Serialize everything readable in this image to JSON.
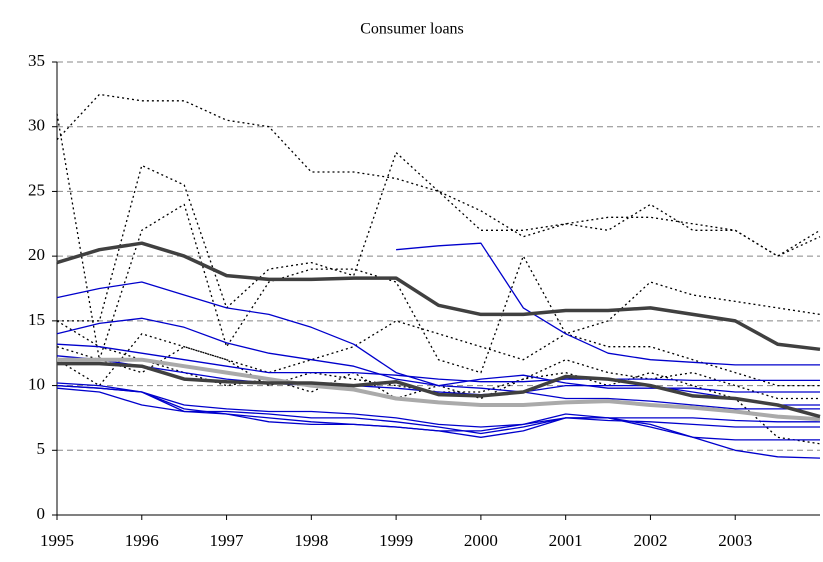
{
  "chart_data": {
    "type": "line",
    "title": "Consumer loans",
    "x": [
      1995,
      1995.5,
      1996,
      1996.5,
      1997,
      1997.5,
      1998,
      1998.5,
      1999,
      1999.5,
      2000,
      2000.5,
      2001,
      2001.5,
      2002,
      2002.5,
      2003,
      2003.5,
      2004
    ],
    "xlim": [
      1995,
      2004
    ],
    "xticks": [
      1995,
      1996,
      1997,
      1998,
      1999,
      2000,
      2001,
      2002,
      2003
    ],
    "ylim": [
      0,
      35
    ],
    "yticks": [
      0,
      5,
      10,
      15,
      20,
      25,
      30,
      35
    ],
    "grid": true,
    "series": [
      {
        "color": "#000000",
        "style": "dotted",
        "line_width": 1.3,
        "values": [
          29,
          32.5,
          32,
          32,
          30.5,
          30,
          26.5,
          26.5,
          26,
          25,
          23.5,
          21.5,
          22.5,
          23,
          23,
          22.5,
          22,
          20,
          22
        ]
      },
      {
        "color": "#000000",
        "style": "dotted",
        "line_width": 1.3,
        "values": [
          15,
          15,
          27,
          25.5,
          16,
          19,
          19.5,
          18.5,
          28,
          25,
          22,
          22,
          22.5,
          22,
          24,
          22,
          22,
          20,
          21.5
        ]
      },
      {
        "color": "#000000",
        "style": "dotted",
        "line_width": 1.3,
        "values": [
          31,
          12,
          22,
          24,
          13,
          18,
          19,
          19,
          18,
          12,
          11,
          20,
          14,
          15,
          18,
          17,
          16.5,
          16,
          15.5
        ]
      },
      {
        "color": "#000000",
        "style": "dotted",
        "line_width": 1.3,
        "values": [
          12,
          10,
          14,
          13,
          12,
          11,
          12,
          13,
          15,
          14,
          13,
          12,
          14,
          13,
          13,
          12,
          11,
          10,
          10
        ]
      },
      {
        "color": "#000000",
        "style": "dotted",
        "line_width": 1.3,
        "values": [
          15,
          13,
          12,
          11,
          10,
          10.5,
          9.5,
          11,
          9,
          10,
          9,
          10.5,
          12,
          11,
          10.5,
          11,
          10,
          9,
          9
        ]
      },
      {
        "color": "#000000",
        "style": "dotted",
        "line_width": 1.3,
        "values": [
          13,
          12,
          11,
          13,
          12,
          10,
          11,
          10.5,
          10,
          9.5,
          9.5,
          10.5,
          11,
          10,
          11,
          10,
          9,
          6,
          5.5
        ]
      },
      {
        "color": "#0000cc",
        "style": "solid",
        "line_width": 1.3,
        "values": [
          16.8,
          17.5,
          18,
          17,
          16,
          15.5,
          14.5,
          13.2,
          11,
          10,
          9.8,
          9.5,
          9,
          9,
          8.8,
          8.5,
          8.2,
          8.2,
          8.2
        ]
      },
      {
        "color": "#0000cc",
        "style": "solid",
        "line_width": 1.3,
        "values": [
          14,
          14.8,
          15.2,
          14.5,
          13.3,
          12.5,
          12,
          11.5,
          10.5,
          10,
          10.5,
          10.8,
          10.2,
          9.8,
          9.8,
          9.8,
          9.5,
          9.5,
          9.5
        ]
      },
      {
        "color": "#0000cc",
        "style": "solid",
        "line_width": 1.3,
        "values": [
          13.2,
          13,
          12.5,
          12,
          11.5,
          11,
          11,
          11,
          10.8,
          10.5,
          10.3,
          10.3,
          10.5,
          10.5,
          10.5,
          10.4,
          10.4,
          10.4,
          10.4
        ]
      },
      {
        "color": "#0000cc",
        "style": "solid",
        "line_width": 1.3,
        "values": [
          12.3,
          12,
          11.5,
          11,
          10.5,
          10.2,
          10,
          10,
          9.8,
          9.5,
          9.3,
          9.5,
          10,
          10,
          10,
          9.5,
          9,
          8.5,
          8.5
        ]
      },
      {
        "color": "#0000cc",
        "style": "solid",
        "line_width": 1.3,
        "values": [
          10.2,
          10,
          9.5,
          8.5,
          8.2,
          8,
          8,
          7.8,
          7.5,
          7,
          6.8,
          7,
          7.5,
          7.3,
          7.2,
          7,
          6.8,
          6.8,
          6.8
        ]
      },
      {
        "color": "#0000cc",
        "style": "solid",
        "line_width": 1.3,
        "values": [
          10,
          9.8,
          9.5,
          8,
          8,
          7.8,
          7.5,
          7.5,
          7.2,
          6.8,
          6.3,
          6.8,
          7.5,
          7.5,
          7.5,
          7.5,
          7.3,
          7.2,
          7.2
        ]
      },
      {
        "color": "#0000cc",
        "style": "solid",
        "line_width": 1.3,
        "values": [
          10,
          9.8,
          9.5,
          8.2,
          7.8,
          7.2,
          7,
          7,
          6.8,
          6.5,
          6.5,
          7,
          7.8,
          7.5,
          6.8,
          6,
          5.8,
          5.8,
          5.8
        ]
      },
      {
        "color": "#0000cc",
        "style": "solid",
        "line_width": 1.3,
        "values": [
          null,
          null,
          null,
          null,
          null,
          null,
          null,
          null,
          20.5,
          20.8,
          21,
          16,
          14,
          12.5,
          12,
          11.8,
          11.6,
          11.6,
          11.6
        ]
      },
      {
        "color": "#0000cc",
        "style": "solid",
        "line_width": 1.3,
        "values": [
          9.8,
          9.5,
          8.5,
          8,
          7.8,
          7.5,
          7.2,
          7,
          6.8,
          6.5,
          6,
          6.5,
          7.5,
          7.5,
          7,
          6,
          5,
          4.5,
          4.4
        ]
      },
      {
        "color": "#aaaaaa",
        "style": "solid",
        "line_width": 4,
        "values": [
          12,
          12,
          12,
          11.5,
          11,
          10.5,
          10,
          9.7,
          9,
          8.7,
          8.5,
          8.5,
          8.7,
          8.8,
          8.5,
          8.3,
          8,
          7.6,
          7.4
        ]
      },
      {
        "color": "#404040",
        "style": "solid",
        "line_width": 3.5,
        "values": [
          19.5,
          20.5,
          21,
          20,
          18.5,
          18.2,
          18.2,
          18.3,
          18.3,
          16.2,
          15.5,
          15.5,
          15.8,
          15.8,
          16,
          15.5,
          15,
          13.2,
          12.8
        ]
      },
      {
        "color": "#404040",
        "style": "solid",
        "line_width": 3.5,
        "values": [
          11.7,
          11.7,
          11.5,
          10.5,
          10.3,
          10.2,
          10.2,
          10,
          10.3,
          9.3,
          9.2,
          9.5,
          10.7,
          10.5,
          10,
          9.2,
          9,
          8.5,
          7.6
        ]
      }
    ]
  }
}
